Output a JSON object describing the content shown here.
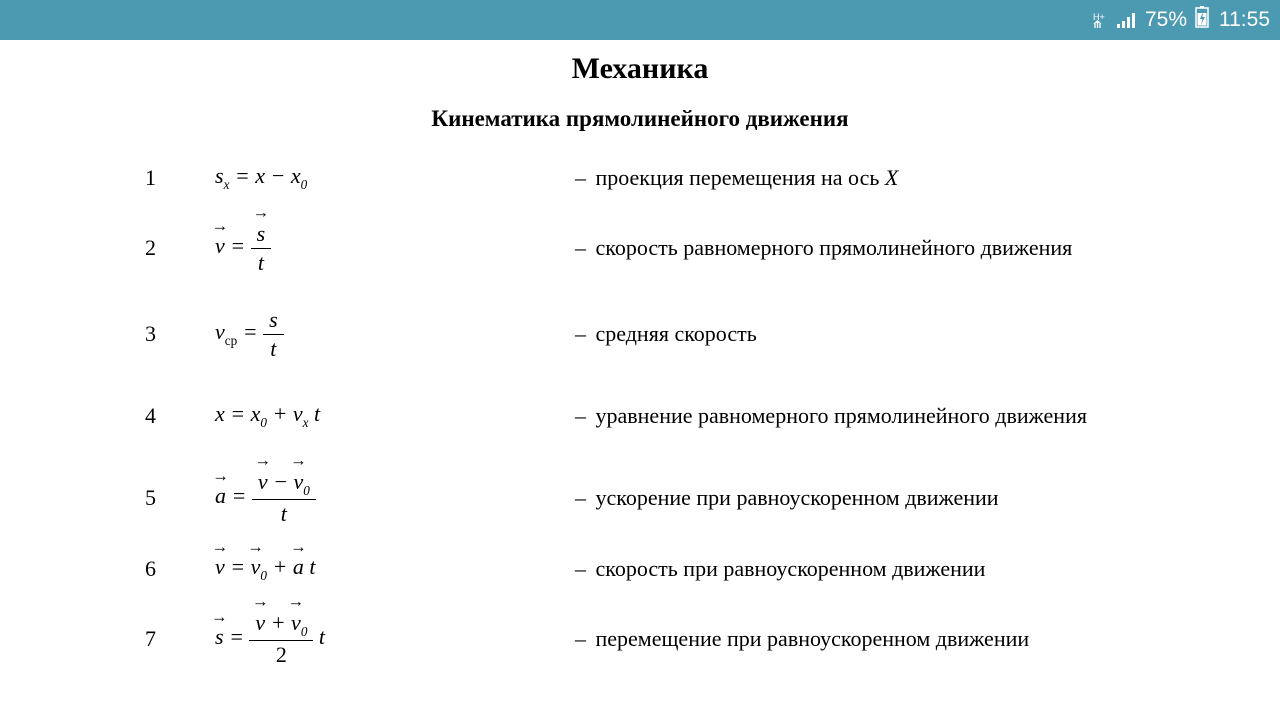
{
  "statusbar": {
    "background_color": "#4b9ab2",
    "text_color": "#ffffff",
    "network_indicator": "H+",
    "battery_text": "75%",
    "time": "11:55",
    "font_size": 21
  },
  "document": {
    "title": "Механика",
    "subtitle": "Кинематика прямолинейного движения",
    "title_fontsize": 30,
    "subtitle_fontsize": 23,
    "body_fontsize": 22,
    "text_color": "#000000",
    "background_color": "#ffffff",
    "formulas": [
      {
        "num": "1",
        "formula_html": "<span>s<sub>x</sub> = x − x<sub>0</sub></span>",
        "desc": "проекция перемещения на ось",
        "desc_tail_italic": "X"
      },
      {
        "num": "2",
        "formula_html": "<span class='vec'>v</span> = <span class='frac'><span><span class='vec'>s</span></span><span class='den'>t</span></span>",
        "desc": "скорость равномерного прямолинейного движения"
      },
      {
        "num": "3",
        "formula_html": "<span>v<sub class='rm'>ср</sub></span> = <span class='frac'><span>s</span><span class='den'>t</span></span>",
        "desc": "средняя скорость"
      },
      {
        "num": "4",
        "formula_html": "<span>x = x<sub>0</sub> + v<sub>x</sub> t</span>",
        "desc": "уравнение равномерного прямолинейного движения"
      },
      {
        "num": "5",
        "formula_html": "<span class='vec'>a</span> = <span class='frac'><span><span class='vec'>v</span> − <span class='vec'>v</span><sub>0</sub></span><span class='den'>t</span></span>",
        "desc": "ускорение при равноускоренном  движении"
      },
      {
        "num": "6",
        "formula_html": "<span class='vec'>v</span> = <span class='vec'>v</span><sub>0</sub> + <span class='vec'>a</span> t",
        "desc": "скорость при равноускоренном движении"
      },
      {
        "num": "7",
        "formula_html": "<span class='vec'>s</span> = <span class='frac'><span><span class='vec'>v</span> + <span class='vec'>v</span><sub>0</sub></span><span class='den rm'>2</span></span> t",
        "desc": "перемещение при равноускоренном движении"
      }
    ]
  }
}
